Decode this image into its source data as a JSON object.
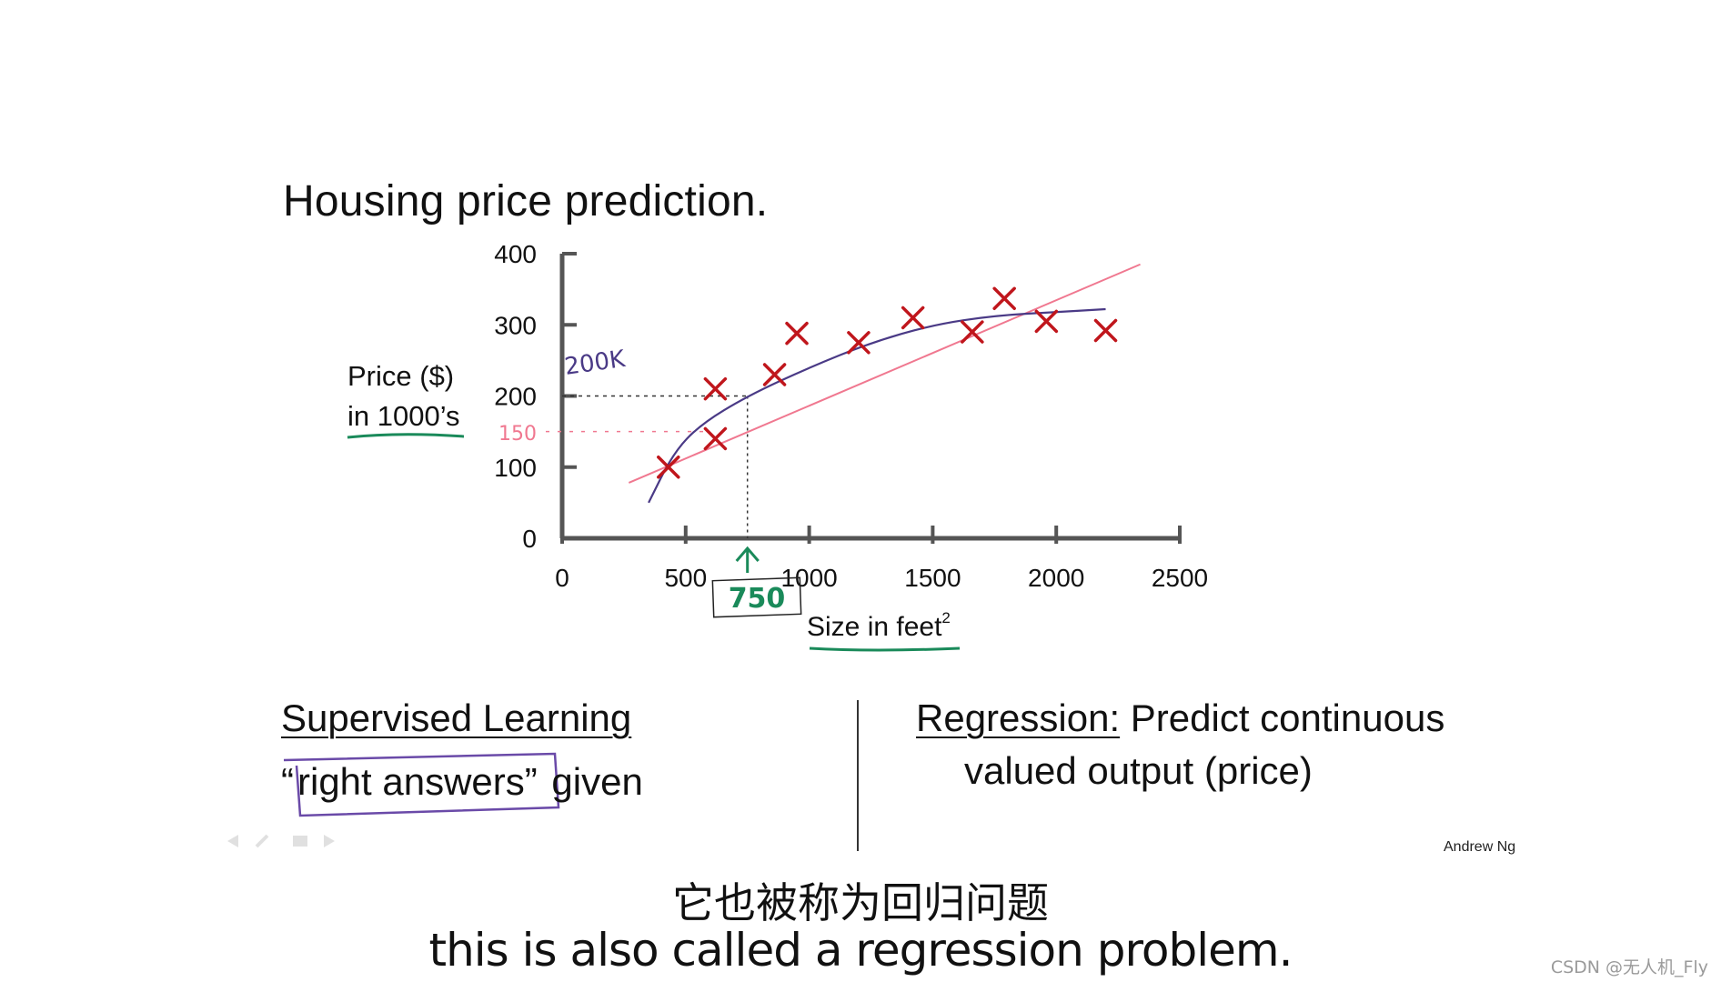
{
  "slide": {
    "title": "Housing price prediction.",
    "ylabel_line1": "Price ($)",
    "ylabel_line2": "in 1000’s",
    "xlabel": "Size in feet",
    "xlabel_sup": "2",
    "left_title": "Supervised Learning",
    "left_open_quote": "“",
    "left_right_answers": "right answers”",
    "left_given": " given",
    "right_term": "Regression:",
    "right_rest": " Predict continuous",
    "right_line2": "valued output (price)",
    "credit": "Andrew Ng"
  },
  "subtitles": {
    "chinese": "它也被称为回归问题",
    "english": "this is also called a regression problem."
  },
  "watermark": "CSDN @无人机_Fly",
  "colors": {
    "marker": "#c0161c",
    "quadratic_fit": "#4a3a86",
    "linear_fit": "#f07890",
    "annotation_green": "#1a8a5a",
    "axis": "#555555"
  },
  "chart_data": {
    "type": "scatter",
    "xlim": [
      0,
      2500
    ],
    "ylim": [
      0,
      400
    ],
    "x_ticks": [
      0,
      500,
      1000,
      1500,
      2000,
      2500
    ],
    "y_ticks": [
      0,
      100,
      200,
      300,
      400
    ],
    "points": [
      {
        "x": 430,
        "y": 100
      },
      {
        "x": 620,
        "y": 140
      },
      {
        "x": 620,
        "y": 210
      },
      {
        "x": 860,
        "y": 230
      },
      {
        "x": 950,
        "y": 288
      },
      {
        "x": 1200,
        "y": 275
      },
      {
        "x": 1420,
        "y": 310
      },
      {
        "x": 1660,
        "y": 290
      },
      {
        "x": 1790,
        "y": 337
      },
      {
        "x": 1960,
        "y": 305
      },
      {
        "x": 2200,
        "y": 292
      }
    ],
    "quadratic_fit": [
      {
        "x": 350,
        "y": 50
      },
      {
        "x": 450,
        "y": 120
      },
      {
        "x": 560,
        "y": 160
      },
      {
        "x": 750,
        "y": 200
      },
      {
        "x": 1000,
        "y": 240
      },
      {
        "x": 1250,
        "y": 275
      },
      {
        "x": 1500,
        "y": 300
      },
      {
        "x": 1750,
        "y": 313
      },
      {
        "x": 2000,
        "y": 318
      },
      {
        "x": 2200,
        "y": 322
      }
    ],
    "linear_fit": [
      {
        "x": 270,
        "y": 78
      },
      {
        "x": 2340,
        "y": 385
      }
    ],
    "annotations": {
      "query_x": 750,
      "query_label": "750",
      "pred_quadratic": 200,
      "pred_quadratic_label": "200K",
      "pred_linear": 150,
      "pred_linear_label": "150"
    }
  }
}
